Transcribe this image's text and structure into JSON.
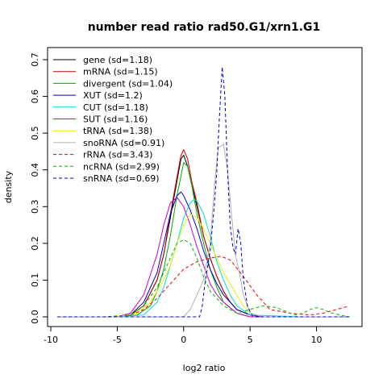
{
  "chart_data": {
    "type": "line",
    "title": "number read ratio rad50.G1/xrn1.G1",
    "xlabel": "log2 ratio",
    "ylabel": "density",
    "xlim": [
      -10,
      13
    ],
    "ylim": [
      0,
      0.7
    ],
    "xticks": [
      -10,
      -5,
      0,
      5,
      10
    ],
    "yticks": [
      0.0,
      0.1,
      0.2,
      0.3,
      0.4,
      0.5,
      0.6,
      0.7
    ],
    "xtick_labels": [
      "-10",
      "-5",
      "0",
      "5",
      "10"
    ],
    "ytick_labels": [
      "0.0",
      "0.1",
      "0.2",
      "0.3",
      "0.4",
      "0.5",
      "0.6",
      "0.7"
    ],
    "legend_position": "top-left",
    "series": [
      {
        "name": "gene (sd=1.18)",
        "color": "#000000",
        "dash": "solid",
        "x": [
          -9.5,
          -5,
          -4,
          -3,
          -2,
          -1.5,
          -1,
          -0.5,
          -0.2,
          0,
          0.3,
          0.6,
          1,
          1.5,
          2,
          2.5,
          3,
          3.5,
          4,
          5,
          6,
          9,
          12.5
        ],
        "y": [
          0,
          0,
          0.005,
          0.03,
          0.1,
          0.17,
          0.27,
          0.37,
          0.43,
          0.44,
          0.41,
          0.36,
          0.3,
          0.22,
          0.16,
          0.11,
          0.07,
          0.04,
          0.02,
          0.005,
          0,
          0,
          0
        ]
      },
      {
        "name": "mRNA (sd=1.15)",
        "color": "#cc0000",
        "dash": "solid",
        "x": [
          -9.5,
          -5,
          -4,
          -3,
          -2,
          -1.5,
          -1,
          -0.5,
          -0.2,
          0,
          0.3,
          0.6,
          1,
          1.5,
          2,
          2.5,
          3,
          3.5,
          4,
          5,
          6,
          9,
          12.5
        ],
        "y": [
          0,
          0,
          0.005,
          0.03,
          0.1,
          0.17,
          0.28,
          0.38,
          0.44,
          0.455,
          0.43,
          0.37,
          0.31,
          0.22,
          0.16,
          0.11,
          0.07,
          0.04,
          0.02,
          0.005,
          0,
          0,
          0
        ]
      },
      {
        "name": "divergent (sd=1.04)",
        "color": "#00aa00",
        "dash": "solid",
        "x": [
          -9.5,
          -5,
          -3.5,
          -2.5,
          -2,
          -1.5,
          -1,
          -0.5,
          0,
          0.3,
          0.6,
          1,
          1.5,
          2,
          2.5,
          3,
          4,
          5,
          9,
          12.5
        ],
        "y": [
          0,
          0,
          0.005,
          0.03,
          0.07,
          0.13,
          0.22,
          0.33,
          0.42,
          0.41,
          0.36,
          0.28,
          0.2,
          0.13,
          0.08,
          0.04,
          0.01,
          0,
          0,
          0
        ]
      },
      {
        "name": "XUT (sd=1.2)",
        "color": "#0000cc",
        "dash": "solid",
        "x": [
          -9.5,
          -5,
          -4,
          -3,
          -2,
          -1.5,
          -1,
          -0.5,
          -0.2,
          0,
          0.5,
          1,
          1.5,
          2,
          2.5,
          3,
          3.5,
          4,
          5,
          6,
          9,
          12.5
        ],
        "y": [
          0,
          0,
          0.005,
          0.04,
          0.12,
          0.2,
          0.28,
          0.33,
          0.34,
          0.33,
          0.29,
          0.24,
          0.18,
          0.13,
          0.09,
          0.06,
          0.04,
          0.02,
          0.005,
          0,
          0,
          0
        ]
      },
      {
        "name": "CUT (sd=1.18)",
        "color": "#00dddd",
        "dash": "solid",
        "x": [
          -9.5,
          -5,
          -3,
          -2,
          -1.5,
          -1,
          -0.5,
          0,
          0.5,
          0.8,
          1,
          1.5,
          2,
          2.5,
          3,
          3.5,
          4,
          5,
          9,
          12.5
        ],
        "y": [
          0,
          0,
          0.005,
          0.04,
          0.08,
          0.14,
          0.2,
          0.27,
          0.31,
          0.32,
          0.315,
          0.28,
          0.22,
          0.15,
          0.1,
          0.06,
          0.03,
          0.005,
          0,
          0
        ]
      },
      {
        "name": "SUT (sd=1.16)",
        "color": "#cc00cc",
        "dash": "solid",
        "x": [
          -9.5,
          -5,
          -4,
          -3,
          -2,
          -1.5,
          -1,
          -0.5,
          0,
          0.5,
          1,
          1.5,
          2,
          2.5,
          3,
          4,
          5,
          9,
          12.5
        ],
        "y": [
          0,
          0,
          0.01,
          0.06,
          0.17,
          0.25,
          0.31,
          0.325,
          0.3,
          0.25,
          0.19,
          0.14,
          0.09,
          0.06,
          0.04,
          0.01,
          0,
          0,
          0
        ]
      },
      {
        "name": "tRNA (sd=1.38)",
        "color": "#eeee00",
        "dash": "solid",
        "x": [
          -9.5,
          -5,
          -3.5,
          -2.5,
          -2,
          -1.5,
          -1,
          -0.5,
          0,
          0.5,
          1,
          1.5,
          2,
          2.5,
          3,
          3.5,
          4,
          4.5,
          5,
          6,
          9,
          12.5
        ],
        "y": [
          0,
          0,
          0.01,
          0.04,
          0.07,
          0.1,
          0.14,
          0.2,
          0.25,
          0.28,
          0.27,
          0.24,
          0.2,
          0.16,
          0.12,
          0.09,
          0.06,
          0.03,
          0.01,
          0,
          0,
          0
        ]
      },
      {
        "name": "snoRNA (sd=0.91)",
        "color": "#b0b0b0",
        "dash": "solid",
        "x": [
          -9.5,
          0,
          0.5,
          1,
          1.5,
          2,
          2.3,
          2.6,
          3,
          3.3,
          3.6,
          3.9,
          4.2,
          4.5,
          5,
          6,
          9,
          12.5
        ],
        "y": [
          0,
          0,
          0.02,
          0.06,
          0.1,
          0.2,
          0.35,
          0.46,
          0.47,
          0.4,
          0.28,
          0.17,
          0.12,
          0.06,
          0.01,
          0,
          0,
          0
        ]
      },
      {
        "name": "rRNA (sd=3.43)",
        "color": "#ee0000",
        "dash": "dashed",
        "x": [
          -9.5,
          -6,
          -4,
          -3,
          -2,
          -1,
          0,
          1,
          2,
          2.8,
          3.5,
          4.5,
          5.5,
          6.5,
          8,
          9.5,
          10.5,
          11.5,
          12.3
        ],
        "y": [
          0,
          0,
          0.005,
          0.02,
          0.05,
          0.09,
          0.13,
          0.15,
          0.16,
          0.165,
          0.155,
          0.11,
          0.06,
          0.02,
          0.01,
          0.005,
          0.01,
          0.02,
          0.028
        ]
      },
      {
        "name": "ncRNA (sd=2.99)",
        "color": "#00bb00",
        "dash": "dashed",
        "x": [
          -9.5,
          -6,
          -4,
          -3,
          -2,
          -1,
          -0.5,
          0,
          0.5,
          1,
          1.5,
          2,
          3,
          4,
          5,
          5.5,
          6,
          7,
          8,
          8.5,
          9,
          9.5,
          10,
          10.5,
          11,
          12,
          12.5
        ],
        "y": [
          0,
          0,
          0.005,
          0.03,
          0.08,
          0.16,
          0.2,
          0.21,
          0.2,
          0.16,
          0.11,
          0.07,
          0.03,
          0.01,
          0.02,
          0.025,
          0.03,
          0.025,
          0.01,
          0.005,
          0.01,
          0.02,
          0.025,
          0.02,
          0.012,
          0.003,
          0
        ]
      },
      {
        "name": "snRNA (sd=0.69)",
        "color": "#0000cc",
        "dash": "dashed",
        "x": [
          -9.5,
          1.2,
          1.4,
          1.6,
          2,
          2.3,
          2.5,
          2.7,
          2.9,
          3.1,
          3.3,
          3.5,
          3.7,
          3.9,
          4.1,
          4.3,
          4.5,
          4.8,
          5.2,
          9,
          12.5
        ],
        "y": [
          0,
          0,
          0.03,
          0.09,
          0.18,
          0.3,
          0.4,
          0.55,
          0.68,
          0.6,
          0.4,
          0.25,
          0.19,
          0.17,
          0.24,
          0.2,
          0.1,
          0.03,
          0,
          0,
          0
        ]
      }
    ]
  }
}
